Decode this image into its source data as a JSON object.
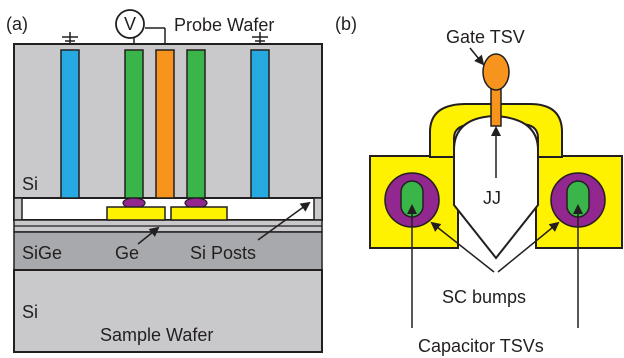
{
  "panel_a": {
    "label": "(a)",
    "probe_wafer_label": "Probe Wafer",
    "voltmeter_symbol": "V",
    "si_top_label": "Si",
    "sige_label": "SiGe",
    "ge_label": "Ge",
    "si_posts_label": "Si Posts",
    "si_bottom_label": "Si",
    "sample_wafer_label": "Sample Wafer"
  },
  "panel_b": {
    "label": "(b)",
    "gate_tsv_label": "Gate TSV",
    "jj_label": "JJ",
    "sc_bumps_label": "SC bumps",
    "capacitor_tsvs_label": "Capacitor TSVs"
  },
  "colors": {
    "wafer_gray": "#c9c9cb",
    "sige_gray": "#a7a9ac",
    "tsv_blue": "#27aae1",
    "tsv_green": "#39b54a",
    "tsv_orange": "#f7941d",
    "bump_purple": "#92278f",
    "pad_yellow": "#fff200",
    "outline": "#231f20"
  }
}
